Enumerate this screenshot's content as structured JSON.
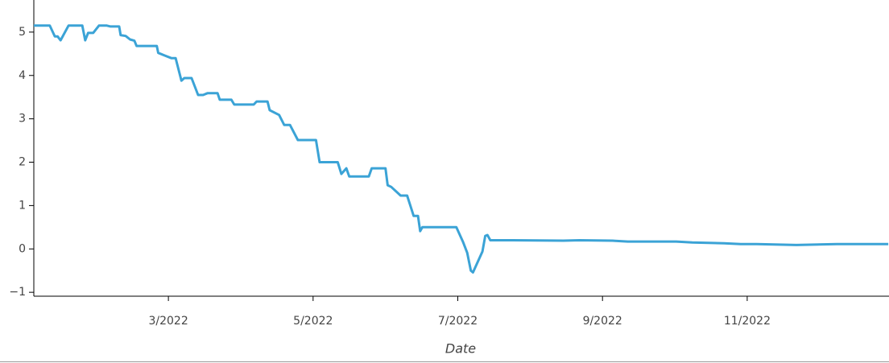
{
  "chart_data": {
    "type": "line",
    "x_label": "Date",
    "x": [
      1.14,
      1.36,
      1.43,
      1.47,
      1.51,
      1.62,
      1.81,
      1.85,
      1.89,
      1.96,
      2.04,
      2.15,
      2.2,
      2.32,
      2.34,
      2.41,
      2.47,
      2.53,
      2.56,
      2.84,
      2.86,
      2.95,
      3.04,
      3.1,
      3.18,
      3.22,
      3.32,
      3.41,
      3.48,
      3.54,
      3.68,
      3.71,
      3.87,
      3.91,
      4.18,
      4.22,
      4.37,
      4.4,
      4.53,
      4.6,
      4.68,
      4.79,
      5.04,
      5.09,
      5.34,
      5.39,
      5.46,
      5.5,
      5.77,
      5.81,
      6.0,
      6.03,
      6.08,
      6.21,
      6.3,
      6.39,
      6.45,
      6.48,
      6.51,
      6.98,
      7.07,
      7.13,
      7.18,
      7.21,
      7.34,
      7.38,
      7.41,
      7.45,
      7.76,
      8.46,
      8.68,
      9.13,
      9.35,
      10.02,
      10.24,
      10.68,
      10.91,
      11.13,
      11.68,
      12.24,
      12.95
    ],
    "series": [
      {
        "color": "#3ba3d6",
        "values": [
          5.15,
          5.15,
          4.9,
          4.9,
          4.81,
          5.15,
          5.15,
          4.81,
          4.98,
          4.98,
          5.15,
          5.15,
          5.13,
          5.13,
          4.93,
          4.91,
          4.83,
          4.8,
          4.68,
          4.68,
          4.52,
          4.46,
          4.4,
          4.4,
          3.88,
          3.94,
          3.94,
          3.55,
          3.55,
          3.59,
          3.59,
          3.44,
          3.44,
          3.33,
          3.33,
          3.4,
          3.4,
          3.2,
          3.09,
          2.86,
          2.86,
          2.51,
          2.51,
          2.0,
          2.0,
          1.73,
          1.86,
          1.67,
          1.67,
          1.86,
          1.86,
          1.47,
          1.43,
          1.23,
          1.23,
          0.76,
          0.76,
          0.41,
          0.5,
          0.5,
          0.17,
          -0.09,
          -0.5,
          -0.54,
          -0.06,
          0.3,
          0.32,
          0.2,
          0.2,
          0.19,
          0.2,
          0.19,
          0.17,
          0.17,
          0.15,
          0.13,
          0.11,
          0.11,
          0.09,
          0.11,
          0.11
        ]
      }
    ],
    "xlim": [
      1.14,
      12.96
    ],
    "xticks": [
      {
        "value": 3,
        "label": "3/2022"
      },
      {
        "value": 5,
        "label": "5/2022"
      },
      {
        "value": 7,
        "label": "7/2022"
      },
      {
        "value": 9,
        "label": "9/2022"
      },
      {
        "value": 11,
        "label": "11/2022"
      }
    ],
    "ylim": [
      -1.09,
      5.74
    ],
    "yticks": [
      {
        "value": -1,
        "label": "−1"
      },
      0,
      1,
      2,
      3,
      4,
      5
    ]
  }
}
